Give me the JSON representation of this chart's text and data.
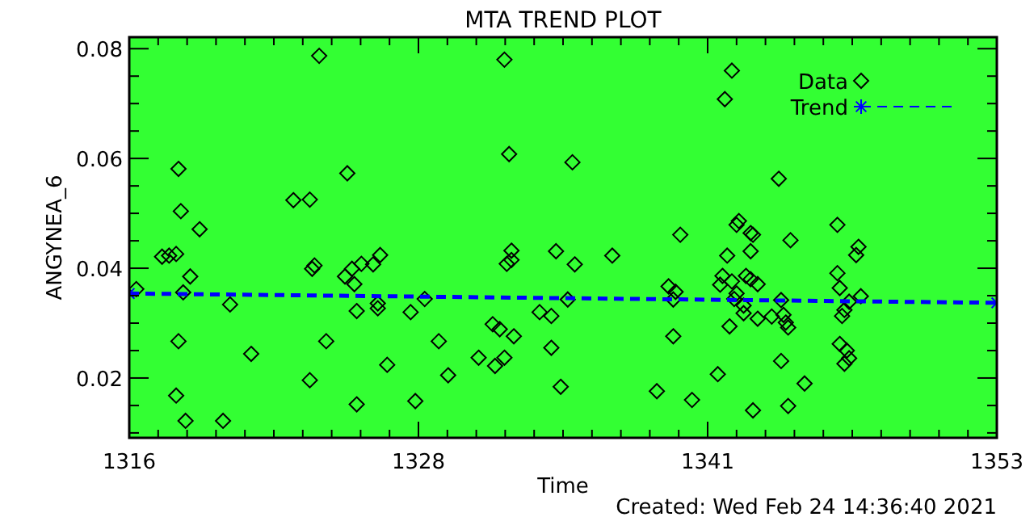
{
  "chart_data": {
    "type": "scatter",
    "title": "MTA TREND PLOT",
    "xlabel": "Time",
    "ylabel": "ANGYNEA_6",
    "annotations": [
      "Created: Wed Feb 24 14:36:40 2021"
    ],
    "xlim": [
      1316,
      1353
    ],
    "xticks": [
      1316,
      {
        "value": 1317.233,
        "label": null
      },
      {
        "value": 1318.467,
        "label": null
      },
      {
        "value": 1319.7,
        "label": null
      },
      {
        "value": 1320.933,
        "label": null
      },
      {
        "value": 1322.167,
        "label": null
      },
      {
        "value": 1323.4,
        "label": null
      },
      {
        "value": 1324.633,
        "label": null
      },
      {
        "value": 1325.867,
        "label": null
      },
      {
        "value": 1327.1,
        "label": null
      },
      {
        "value": 1328.333,
        "label": "1328"
      },
      {
        "value": 1329.567,
        "label": null
      },
      {
        "value": 1330.8,
        "label": null
      },
      {
        "value": 1332.033,
        "label": null
      },
      {
        "value": 1333.267,
        "label": null
      },
      {
        "value": 1334.5,
        "label": null
      },
      {
        "value": 1335.733,
        "label": null
      },
      {
        "value": 1336.967,
        "label": null
      },
      {
        "value": 1338.2,
        "label": null
      },
      {
        "value": 1339.433,
        "label": null
      },
      {
        "value": 1340.667,
        "label": "1341"
      },
      {
        "value": 1341.9,
        "label": null
      },
      {
        "value": 1343.133,
        "label": null
      },
      {
        "value": 1344.367,
        "label": null
      },
      {
        "value": 1345.6,
        "label": null
      },
      {
        "value": 1346.833,
        "label": null
      },
      {
        "value": 1348.067,
        "label": null
      },
      {
        "value": 1349.3,
        "label": null
      },
      {
        "value": 1350.533,
        "label": null
      },
      {
        "value": 1351.767,
        "label": null
      },
      1353
    ],
    "ylim": [
      0.0091,
      0.0821
    ],
    "yticks": [
      {
        "value": 0.01,
        "label": null
      },
      {
        "value": 0.015,
        "label": null
      },
      0.02,
      {
        "value": 0.025,
        "label": null
      },
      {
        "value": 0.03,
        "label": null
      },
      {
        "value": 0.035,
        "label": null
      },
      0.04,
      {
        "value": 0.045,
        "label": null
      },
      {
        "value": 0.05,
        "label": null
      },
      {
        "value": 0.055,
        "label": null
      },
      0.06,
      {
        "value": 0.065,
        "label": null
      },
      {
        "value": 0.07,
        "label": null
      },
      {
        "value": 0.075,
        "label": null
      },
      0.08
    ],
    "legend": "top right",
    "grid": false,
    "series": [
      {
        "name": "Data",
        "color": "#000000",
        "marker": "diamond",
        "x": [
          1316.3,
          1324.1,
          1318.1,
          1325.3,
          1323.0,
          1323.7,
          1318.2,
          1319.0,
          1317.4,
          1317.7,
          1318.0,
          1318.6,
          1318.3,
          1323.9,
          1323.8,
          1325.2,
          1325.5,
          1325.6,
          1325.9,
          1326.4,
          1326.7,
          1320.3,
          1325.7,
          1326.6,
          1326.6,
          1328.0,
          1318.1,
          1324.4,
          1321.2,
          1327.0,
          1323.7,
          1318.0,
          1325.7,
          1328.2,
          1318.4,
          1320.0,
          1332.0,
          1332.2,
          1334.9,
          1339.5,
          1332.3,
          1334.2,
          1336.6,
          1332.1,
          1332.3,
          1335.0,
          1328.6,
          1339.0,
          1339.3,
          1339.2,
          1334.7,
          1333.5,
          1334.0,
          1331.5,
          1331.8,
          1332.4,
          1339.2,
          1329.2,
          1334.0,
          1330.9,
          1332.0,
          1331.6,
          1329.6,
          1334.4,
          1338.5,
          1340.0,
          1341.7,
          1341.4,
          1343.7,
          1342.0,
          1341.9,
          1342.5,
          1342.6,
          1344.2,
          1346.2,
          1347.1,
          1347.0,
          1342.5,
          1341.5,
          1341.3,
          1341.2,
          1341.7,
          1342.3,
          1342.5,
          1342.8,
          1341.9,
          1341.8,
          1342.2,
          1342.2,
          1342.8,
          1343.8,
          1343.4,
          1343.9,
          1344.0,
          1344.1,
          1341.6,
          1346.2,
          1346.3,
          1347.2,
          1346.7,
          1346.5,
          1346.4,
          1343.8,
          1346.3,
          1346.6,
          1346.7,
          1346.5,
          1341.1,
          1344.8,
          1342.6,
          1344.1
        ],
        "values": [
          0.0362,
          0.0787,
          0.0581,
          0.0573,
          0.0524,
          0.0525,
          0.0504,
          0.0471,
          0.0421,
          0.0423,
          0.0426,
          0.0385,
          0.0356,
          0.0405,
          0.0399,
          0.0385,
          0.0399,
          0.0371,
          0.0408,
          0.0407,
          0.0424,
          0.0334,
          0.0322,
          0.0336,
          0.0327,
          0.032,
          0.0267,
          0.0267,
          0.0244,
          0.0224,
          0.0196,
          0.0168,
          0.0152,
          0.0158,
          0.0122,
          0.0122,
          0.078,
          0.0608,
          0.0593,
          0.0461,
          0.0432,
          0.0431,
          0.0423,
          0.0408,
          0.0415,
          0.0407,
          0.0344,
          0.0367,
          0.0357,
          0.0343,
          0.0343,
          0.032,
          0.0313,
          0.0298,
          0.0289,
          0.0276,
          0.0276,
          0.0267,
          0.0255,
          0.0237,
          0.0237,
          0.0222,
          0.0205,
          0.0184,
          0.0176,
          0.016,
          0.076,
          0.0708,
          0.0563,
          0.0486,
          0.0479,
          0.0464,
          0.0461,
          0.0451,
          0.0479,
          0.0439,
          0.0424,
          0.0431,
          0.0423,
          0.0386,
          0.037,
          0.0376,
          0.0386,
          0.038,
          0.0371,
          0.0354,
          0.0344,
          0.0332,
          0.0318,
          0.0308,
          0.0342,
          0.0312,
          0.0315,
          0.0301,
          0.0292,
          0.0294,
          0.0391,
          0.0364,
          0.0349,
          0.0339,
          0.0324,
          0.0313,
          0.0231,
          0.0262,
          0.025,
          0.0236,
          0.0226,
          0.0207,
          0.019,
          0.0141,
          0.0149
        ]
      },
      {
        "name": "Trend",
        "type": "line",
        "color": "#0000ff",
        "marker": "cross",
        "line_style": "dashed",
        "x": [
          1316,
          1353
        ],
        "values": [
          0.0354,
          0.0337
        ]
      }
    ]
  }
}
